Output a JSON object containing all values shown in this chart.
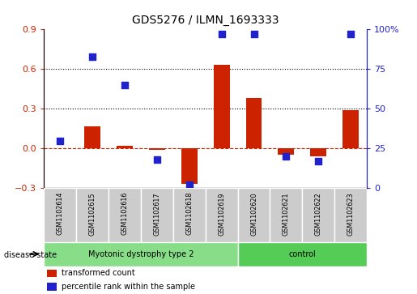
{
  "title": "GDS5276 / ILMN_1693333",
  "categories": [
    "GSM1102614",
    "GSM1102615",
    "GSM1102616",
    "GSM1102617",
    "GSM1102618",
    "GSM1102619",
    "GSM1102620",
    "GSM1102621",
    "GSM1102622",
    "GSM1102623"
  ],
  "red_values": [
    0.0,
    0.17,
    0.02,
    -0.01,
    -0.27,
    0.63,
    0.38,
    -0.05,
    -0.06,
    0.29
  ],
  "blue_values": [
    30,
    83,
    65,
    18,
    2,
    97,
    97,
    20,
    17,
    97
  ],
  "red_ylim": [
    -0.3,
    0.9
  ],
  "blue_ylim": [
    0,
    100
  ],
  "red_yticks": [
    -0.3,
    0.0,
    0.3,
    0.6,
    0.9
  ],
  "blue_yticks": [
    0,
    25,
    50,
    75,
    100
  ],
  "blue_ytick_labels": [
    "0",
    "25",
    "50",
    "75",
    "100%"
  ],
  "red_color": "#cc2200",
  "blue_color": "#2222cc",
  "dotted_line_y": [
    0.3,
    0.6
  ],
  "dashed_line_y": 0.0,
  "group1_label": "Myotonic dystrophy type 2",
  "group1_count": 6,
  "group2_label": "control",
  "group2_count": 4,
  "disease_state_label": "disease state",
  "legend_red": "transformed count",
  "legend_blue": "percentile rank within the sample",
  "bar_width": 0.5,
  "blue_marker_size": 28,
  "group_bg_color": "#cccccc",
  "group1_color": "#88dd88",
  "group2_color": "#55cc55",
  "bar_edge_color": "none"
}
